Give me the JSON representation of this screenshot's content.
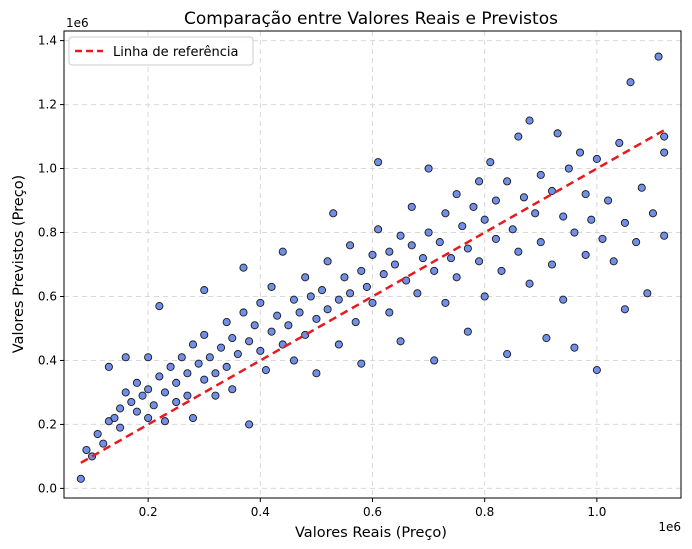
{
  "chart_data": {
    "type": "scatter",
    "title": "Comparação entre Valores Reais e Previstos",
    "xlabel": "Valores Reais (Preço)",
    "ylabel": "Valores Previstos (Preço)",
    "x_offset_label": "1e6",
    "y_offset_label": "1e6",
    "xlim": [
      0.05,
      1.15
    ],
    "ylim": [
      -0.03,
      1.43
    ],
    "xticks": [
      0.2,
      0.4,
      0.6,
      0.8,
      1.0
    ],
    "yticks": [
      0.0,
      0.2,
      0.4,
      0.6,
      0.8,
      1.0,
      1.2,
      1.4
    ],
    "xtick_labels": [
      "0.2",
      "0.4",
      "0.6",
      "0.8",
      "1.0"
    ],
    "ytick_labels": [
      "0.0",
      "0.2",
      "0.4",
      "0.6",
      "0.8",
      "1.0",
      "1.2",
      "1.4"
    ],
    "grid": true,
    "legend_position": "top-left",
    "series": [
      {
        "kind": "scatter",
        "color": "#4169e1",
        "edge_color": "#1a1a1a",
        "points": [
          [
            0.08,
            0.03
          ],
          [
            0.09,
            0.12
          ],
          [
            0.1,
            0.1
          ],
          [
            0.11,
            0.17
          ],
          [
            0.12,
            0.14
          ],
          [
            0.13,
            0.21
          ],
          [
            0.13,
            0.38
          ],
          [
            0.14,
            0.22
          ],
          [
            0.15,
            0.25
          ],
          [
            0.15,
            0.19
          ],
          [
            0.16,
            0.41
          ],
          [
            0.16,
            0.3
          ],
          [
            0.17,
            0.27
          ],
          [
            0.18,
            0.24
          ],
          [
            0.18,
            0.33
          ],
          [
            0.19,
            0.29
          ],
          [
            0.2,
            0.31
          ],
          [
            0.2,
            0.22
          ],
          [
            0.2,
            0.41
          ],
          [
            0.21,
            0.26
          ],
          [
            0.22,
            0.35
          ],
          [
            0.22,
            0.57
          ],
          [
            0.23,
            0.3
          ],
          [
            0.23,
            0.21
          ],
          [
            0.24,
            0.38
          ],
          [
            0.25,
            0.33
          ],
          [
            0.25,
            0.27
          ],
          [
            0.26,
            0.41
          ],
          [
            0.27,
            0.36
          ],
          [
            0.27,
            0.29
          ],
          [
            0.28,
            0.45
          ],
          [
            0.28,
            0.22
          ],
          [
            0.29,
            0.39
          ],
          [
            0.3,
            0.34
          ],
          [
            0.3,
            0.48
          ],
          [
            0.3,
            0.62
          ],
          [
            0.31,
            0.41
          ],
          [
            0.32,
            0.36
          ],
          [
            0.32,
            0.29
          ],
          [
            0.33,
            0.44
          ],
          [
            0.34,
            0.52
          ],
          [
            0.34,
            0.38
          ],
          [
            0.35,
            0.47
          ],
          [
            0.35,
            0.31
          ],
          [
            0.36,
            0.42
          ],
          [
            0.37,
            0.55
          ],
          [
            0.37,
            0.69
          ],
          [
            0.38,
            0.46
          ],
          [
            0.38,
            0.2
          ],
          [
            0.39,
            0.51
          ],
          [
            0.4,
            0.43
          ],
          [
            0.4,
            0.58
          ],
          [
            0.41,
            0.37
          ],
          [
            0.42,
            0.49
          ],
          [
            0.42,
            0.63
          ],
          [
            0.43,
            0.54
          ],
          [
            0.44,
            0.45
          ],
          [
            0.44,
            0.74
          ],
          [
            0.45,
            0.51
          ],
          [
            0.46,
            0.59
          ],
          [
            0.46,
            0.4
          ],
          [
            0.47,
            0.55
          ],
          [
            0.48,
            0.48
          ],
          [
            0.48,
            0.66
          ],
          [
            0.49,
            0.6
          ],
          [
            0.5,
            0.53
          ],
          [
            0.5,
            0.36
          ],
          [
            0.51,
            0.62
          ],
          [
            0.52,
            0.56
          ],
          [
            0.52,
            0.71
          ],
          [
            0.53,
            0.86
          ],
          [
            0.54,
            0.59
          ],
          [
            0.54,
            0.45
          ],
          [
            0.55,
            0.66
          ],
          [
            0.56,
            0.61
          ],
          [
            0.56,
            0.76
          ],
          [
            0.57,
            0.52
          ],
          [
            0.58,
            0.68
          ],
          [
            0.58,
            0.39
          ],
          [
            0.59,
            0.63
          ],
          [
            0.6,
            0.73
          ],
          [
            0.6,
            0.58
          ],
          [
            0.61,
            0.81
          ],
          [
            0.61,
            1.02
          ],
          [
            0.62,
            0.67
          ],
          [
            0.63,
            0.74
          ],
          [
            0.63,
            0.55
          ],
          [
            0.64,
            0.7
          ],
          [
            0.65,
            0.79
          ],
          [
            0.65,
            0.46
          ],
          [
            0.66,
            0.65
          ],
          [
            0.67,
            0.76
          ],
          [
            0.67,
            0.88
          ],
          [
            0.68,
            0.61
          ],
          [
            0.69,
            0.72
          ],
          [
            0.7,
            0.8
          ],
          [
            0.7,
            1.0
          ],
          [
            0.71,
            0.68
          ],
          [
            0.71,
            0.4
          ],
          [
            0.72,
            0.77
          ],
          [
            0.73,
            0.86
          ],
          [
            0.73,
            0.58
          ],
          [
            0.74,
            0.72
          ],
          [
            0.75,
            0.92
          ],
          [
            0.75,
            0.66
          ],
          [
            0.76,
            0.82
          ],
          [
            0.77,
            0.75
          ],
          [
            0.77,
            0.49
          ],
          [
            0.78,
            0.88
          ],
          [
            0.79,
            0.96
          ],
          [
            0.79,
            0.71
          ],
          [
            0.8,
            0.84
          ],
          [
            0.8,
            0.6
          ],
          [
            0.81,
            1.02
          ],
          [
            0.82,
            0.78
          ],
          [
            0.82,
            0.9
          ],
          [
            0.83,
            0.68
          ],
          [
            0.84,
            0.96
          ],
          [
            0.84,
            0.42
          ],
          [
            0.85,
            0.81
          ],
          [
            0.86,
            1.1
          ],
          [
            0.86,
            0.74
          ],
          [
            0.87,
            0.91
          ],
          [
            0.88,
            1.15
          ],
          [
            0.88,
            0.64
          ],
          [
            0.89,
            0.86
          ],
          [
            0.9,
            0.98
          ],
          [
            0.9,
            0.77
          ],
          [
            0.91,
            0.47
          ],
          [
            0.92,
            0.93
          ],
          [
            0.92,
            0.7
          ],
          [
            0.93,
            1.11
          ],
          [
            0.94,
            0.85
          ],
          [
            0.94,
            0.59
          ],
          [
            0.95,
            1.0
          ],
          [
            0.96,
            0.8
          ],
          [
            0.96,
            0.44
          ],
          [
            0.97,
            1.05
          ],
          [
            0.98,
            0.73
          ],
          [
            0.98,
            0.92
          ],
          [
            0.99,
            0.84
          ],
          [
            1.0,
            0.37
          ],
          [
            1.0,
            1.03
          ],
          [
            1.01,
            0.78
          ],
          [
            1.02,
            0.9
          ],
          [
            1.03,
            0.71
          ],
          [
            1.04,
            1.08
          ],
          [
            1.05,
            0.83
          ],
          [
            1.05,
            0.56
          ],
          [
            1.06,
            1.27
          ],
          [
            1.07,
            0.77
          ],
          [
            1.08,
            0.94
          ],
          [
            1.09,
            0.61
          ],
          [
            1.1,
            0.86
          ],
          [
            1.11,
            1.35
          ],
          [
            1.12,
            0.79
          ],
          [
            1.12,
            1.05
          ],
          [
            1.12,
            1.1
          ]
        ]
      },
      {
        "kind": "line",
        "name": "Linha de referência",
        "color": "#e8191f",
        "dash": true,
        "points": [
          [
            0.08,
            0.08
          ],
          [
            1.125,
            1.125
          ]
        ]
      }
    ]
  }
}
